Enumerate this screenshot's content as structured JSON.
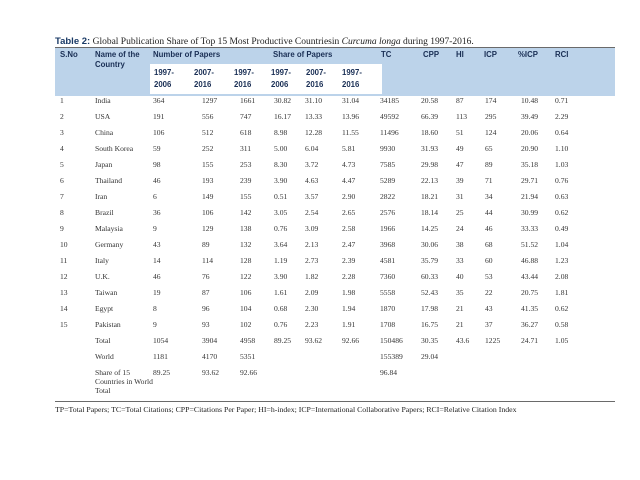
{
  "caption": {
    "label": "Table 2:",
    "text_before": " Global Publication Share of Top 15 Most Productive Countriesin ",
    "italic": "Curcuma longa",
    "text_after": " during 1997-2016."
  },
  "headers": {
    "sno": "S.No",
    "name": "Name of the Country",
    "papers": "Number of Papers",
    "share": "Share of Papers",
    "tc": "TC",
    "cpp": "CPP",
    "hi": "HI",
    "icp": "ICP",
    "picp": "%ICP",
    "rci": "RCI",
    "periods": [
      "1997-2006",
      "2007-2016",
      "1997-2016",
      "1997-2006",
      "2007-2016",
      "1997-2016"
    ]
  },
  "rows": [
    [
      "1",
      "India",
      "364",
      "1297",
      "1661",
      "30.82",
      "31.10",
      "31.04",
      "34185",
      "20.58",
      "87",
      "174",
      "10.48",
      "0.71"
    ],
    [
      "2",
      "USA",
      "191",
      "556",
      "747",
      "16.17",
      "13.33",
      "13.96",
      "49592",
      "66.39",
      "113",
      "295",
      "39.49",
      "2.29"
    ],
    [
      "3",
      "China",
      "106",
      "512",
      "618",
      "8.98",
      "12.28",
      "11.55",
      "11496",
      "18.60",
      "51",
      "124",
      "20.06",
      "0.64"
    ],
    [
      "4",
      "South Korea",
      "59",
      "252",
      "311",
      "5.00",
      "6.04",
      "5.81",
      "9930",
      "31.93",
      "49",
      "65",
      "20.90",
      "1.10"
    ],
    [
      "5",
      "Japan",
      "98",
      "155",
      "253",
      "8.30",
      "3.72",
      "4.73",
      "7585",
      "29.98",
      "47",
      "89",
      "35.18",
      "1.03"
    ],
    [
      "6",
      "Thailand",
      "46",
      "193",
      "239",
      "3.90",
      "4.63",
      "4.47",
      "5289",
      "22.13",
      "39",
      "71",
      "29.71",
      "0.76"
    ],
    [
      "7",
      "Iran",
      "6",
      "149",
      "155",
      "0.51",
      "3.57",
      "2.90",
      "2822",
      "18.21",
      "31",
      "34",
      "21.94",
      "0.63"
    ],
    [
      "8",
      "Brazil",
      "36",
      "106",
      "142",
      "3.05",
      "2.54",
      "2.65",
      "2576",
      "18.14",
      "25",
      "44",
      "30.99",
      "0.62"
    ],
    [
      "9",
      "Malaysia",
      "9",
      "129",
      "138",
      "0.76",
      "3.09",
      "2.58",
      "1966",
      "14.25",
      "24",
      "46",
      "33.33",
      "0.49"
    ],
    [
      "10",
      "Germany",
      "43",
      "89",
      "132",
      "3.64",
      "2.13",
      "2.47",
      "3968",
      "30.06",
      "38",
      "68",
      "51.52",
      "1.04"
    ],
    [
      "11",
      "Italy",
      "14",
      "114",
      "128",
      "1.19",
      "2.73",
      "2.39",
      "4581",
      "35.79",
      "33",
      "60",
      "46.88",
      "1.23"
    ],
    [
      "12",
      "U.K.",
      "46",
      "76",
      "122",
      "3.90",
      "1.82",
      "2.28",
      "7360",
      "60.33",
      "40",
      "53",
      "43.44",
      "2.08"
    ],
    [
      "13",
      "Taiwan",
      "19",
      "87",
      "106",
      "1.61",
      "2.09",
      "1.98",
      "5558",
      "52.43",
      "35",
      "22",
      "20.75",
      "1.81"
    ],
    [
      "14",
      "Egypt",
      "8",
      "96",
      "104",
      "0.68",
      "2.30",
      "1.94",
      "1870",
      "17.98",
      "21",
      "43",
      "41.35",
      "0.62"
    ],
    [
      "15",
      "Pakistan",
      "9",
      "93",
      "102",
      "0.76",
      "2.23",
      "1.91",
      "1708",
      "16.75",
      "21",
      "37",
      "36.27",
      "0.58"
    ],
    [
      "",
      "Total",
      "1054",
      "3904",
      "4958",
      "89.25",
      "93.62",
      "92.66",
      "150486",
      "30.35",
      "43.6",
      "1225",
      "24.71",
      "1.05"
    ],
    [
      "",
      "World",
      "1181",
      "4170",
      "5351",
      "",
      "",
      "",
      "155389",
      "29.04",
      "",
      "",
      "",
      ""
    ],
    [
      "",
      "Share of 15 Countries in World Total",
      "89.25",
      "93.62",
      "92.66",
      "",
      "",
      "",
      "96.84",
      "",
      "",
      "",
      "",
      ""
    ]
  ],
  "footnote": "TP=Total Papers; TC=Total Citations; CPP=Citations Per Paper; HI=h-index; ICP=International Collaborative Papers; RCI=Relative Citation Index"
}
